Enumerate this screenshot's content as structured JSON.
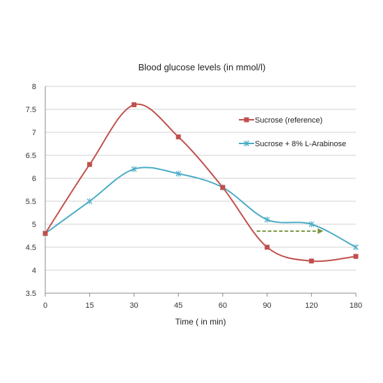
{
  "chart_data": {
    "type": "line",
    "title": "Blood glucose levels (in mmol/l)",
    "xlabel": "Time ( in min)",
    "ylabel": "",
    "categories": [
      "0",
      "15",
      "30",
      "45",
      "60",
      "90",
      "120",
      "180"
    ],
    "ylim": [
      3.5,
      8
    ],
    "yticks": [
      "3.5",
      "4",
      "4.5",
      "5",
      "5.5",
      "6",
      "6.5",
      "7",
      "7.5",
      "8"
    ],
    "grid": true,
    "legend_position": "right",
    "series": [
      {
        "name": "Sucrose (reference)",
        "values": [
          4.8,
          6.3,
          7.6,
          6.9,
          5.8,
          4.5,
          4.2,
          4.3
        ],
        "color": "#c0504d",
        "marker": "square"
      },
      {
        "name": "Sucrose + 8% L-Arabinose",
        "values": [
          4.8,
          5.5,
          6.2,
          6.1,
          5.8,
          5.1,
          5.0,
          4.5
        ],
        "color": "#4bacc6",
        "marker": "x"
      }
    ],
    "annotations": [
      {
        "type": "arrow",
        "style": "dashed",
        "color": "#77933c",
        "x_from": 83,
        "x_to": 135,
        "y": 4.85
      }
    ]
  }
}
